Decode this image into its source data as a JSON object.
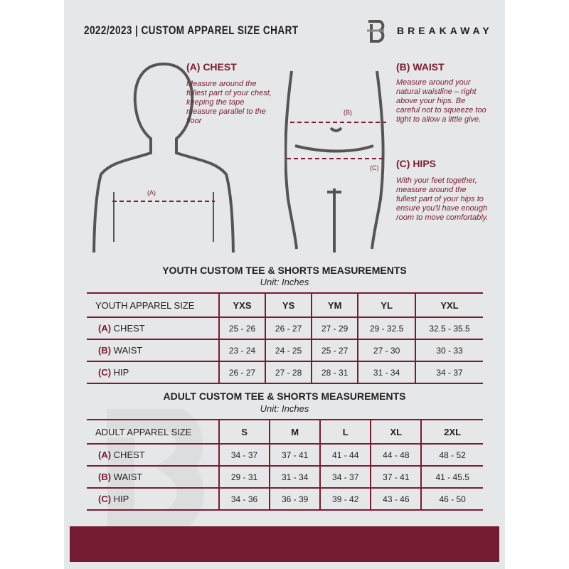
{
  "header": {
    "title": "2022/2023 | CUSTOM APPAREL SIZE CHART",
    "brand": "BREAKAWAY"
  },
  "measure": {
    "chest": {
      "heading": "(A) CHEST",
      "text": "Measure around the fullest part of your chest, keeping the tape measure parallel to the floor",
      "marker": "(A)"
    },
    "waist": {
      "heading": "(B) WAIST",
      "text": "Measure around your natural waistline – right above your hips. Be careful not to squeeze too tight to allow a little give.",
      "marker": "(B)"
    },
    "hips": {
      "heading": "(C) HIPS",
      "text": "With your feet together, measure around the fullest part of your hips to ensure you'll have enough room to move comfortably.",
      "marker": "(C)"
    }
  },
  "youth": {
    "title": "YOUTH CUSTOM TEE & SHORTS MEASUREMENTS",
    "unit": "Unit: Inches",
    "size_label": "YOUTH APPAREL SIZE",
    "sizes": [
      "YXS",
      "YS",
      "YM",
      "YL",
      "YXL"
    ],
    "rows": [
      {
        "letter": "(A)",
        "name": "CHEST",
        "values": [
          "25 - 26",
          "26 - 27",
          "27 - 29",
          "29 - 32.5",
          "32.5 - 35.5"
        ]
      },
      {
        "letter": "(B)",
        "name": "WAIST",
        "values": [
          "23 - 24",
          "24 - 25",
          "25 - 27",
          "27 - 30",
          "30 - 33"
        ]
      },
      {
        "letter": "(C)",
        "name": "HIP",
        "values": [
          "26 - 27",
          "27 - 28",
          "28 - 31",
          "31 - 34",
          "34 - 37"
        ]
      }
    ]
  },
  "adult": {
    "title": "ADULT CUSTOM TEE & SHORTS MEASUREMENTS",
    "unit": "Unit: Inches",
    "size_label": "ADULT APPAREL SIZE",
    "sizes": [
      "S",
      "M",
      "L",
      "XL",
      "2XL"
    ],
    "rows": [
      {
        "letter": "(A)",
        "name": "CHEST",
        "values": [
          "34 - 37",
          "37 - 41",
          "41 - 44",
          "44 - 48",
          "48 - 52"
        ]
      },
      {
        "letter": "(B)",
        "name": "WAIST",
        "values": [
          "29 - 31",
          "31 - 34",
          "34 - 37",
          "37 - 41",
          "41 - 45.5"
        ]
      },
      {
        "letter": "(C)",
        "name": "HIP",
        "values": [
          "34 - 36",
          "36 - 39",
          "39 - 42",
          "43 - 46",
          "46 - 50"
        ]
      }
    ]
  },
  "colors": {
    "accent": "#7a1c31",
    "background": "#e6e7e8",
    "footer": "#731b31"
  }
}
